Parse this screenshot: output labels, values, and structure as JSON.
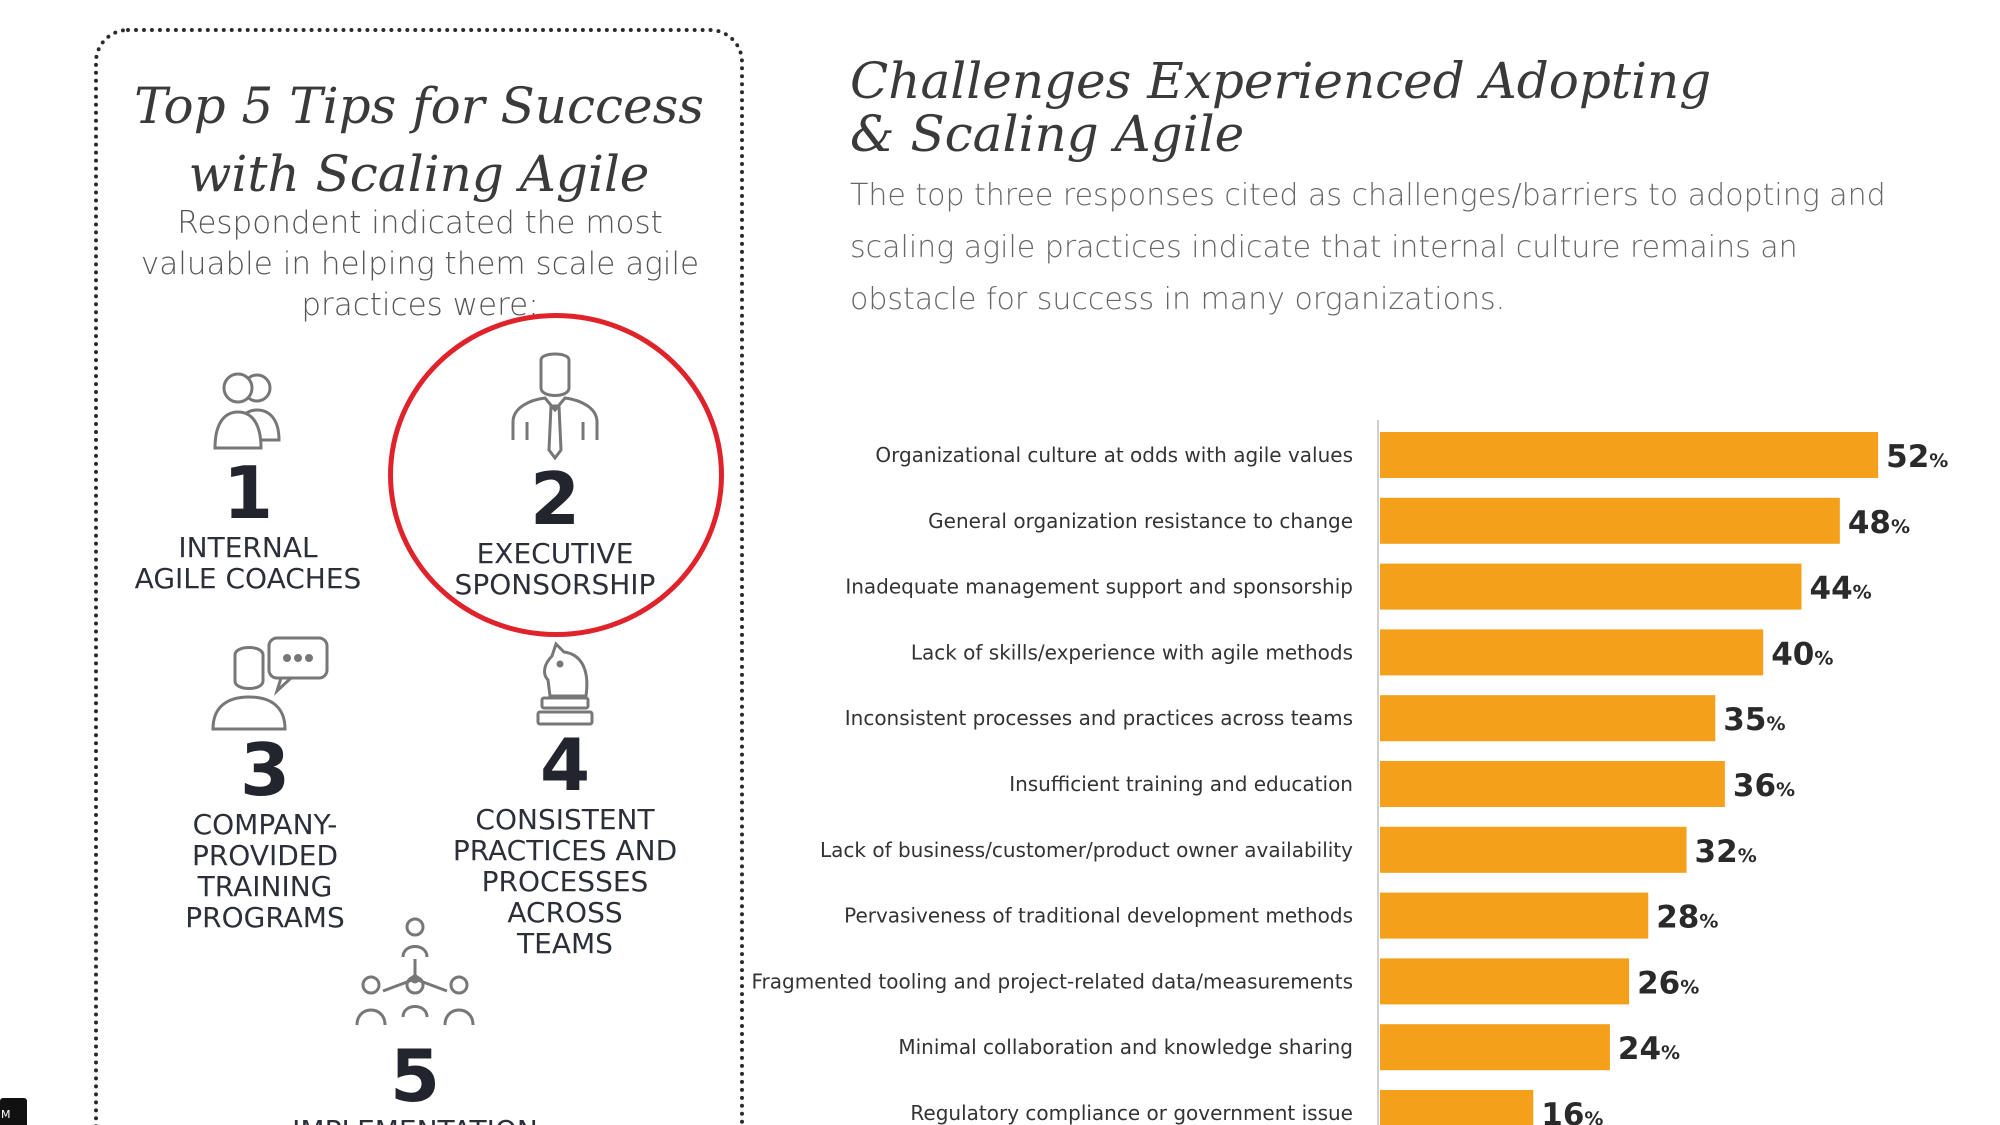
{
  "tips": {
    "title_line1": "Top 5 Tips for Success",
    "title_line2": "with Scaling Agile",
    "subtitle": "Respondent indicated the most valuable in helping them scale agile practices were:",
    "items": [
      {
        "number": "1",
        "line1": "INTERNAL",
        "line2": "AGILE COACHES",
        "icon": "two-people-icon"
      },
      {
        "number": "2",
        "line1": "EXECUTIVE",
        "line2": "SPONSORSHIP",
        "icon": "executive-tie-icon",
        "highlighted": true
      },
      {
        "number": "3",
        "line1": "COMPANY-",
        "line2": "PROVIDED",
        "line3": "TRAINING",
        "line4": "PROGRAMS",
        "icon": "person-speech-bubble-icon"
      },
      {
        "number": "4",
        "line1": "CONSISTENT",
        "line2": "PRACTICES AND",
        "line3": "PROCESSES ACROSS",
        "line4": "TEAMS",
        "icon": "chess-knight-icon"
      },
      {
        "number": "5",
        "line1": "IMPLEMENTATION",
        "icon": "org-structure-icon"
      }
    ],
    "highlight_color": "#e0222b"
  },
  "chart_data": {
    "type": "bar",
    "orientation": "horizontal",
    "title": "Challenges Experienced Adopting & Scaling Agile",
    "subtitle": "The top three responses cited as challenges/barriers to adopting and scaling agile practices indicate that internal culture remains an obstacle for success in many organizations.",
    "categories": [
      "Organizational culture at odds with agile values",
      "General organization resistance to change",
      "Inadequate management support and sponsorship",
      "Lack of skills/experience with agile methods",
      "Inconsistent processes and practices across teams",
      "Insufficient training and education",
      "Lack of business/customer/product owner availability",
      "Pervasiveness of traditional development methods",
      "Fragmented tooling and project-related data/measurements",
      "Minimal collaboration and knowledge sharing",
      "Regulatory compliance or government issue"
    ],
    "values": [
      52,
      48,
      44,
      40,
      35,
      36,
      32,
      28,
      26,
      24,
      16
    ],
    "value_suffix": "%",
    "bar_color": "#f5a01a",
    "xlim": [
      0,
      52
    ]
  },
  "corner_badge": "M"
}
